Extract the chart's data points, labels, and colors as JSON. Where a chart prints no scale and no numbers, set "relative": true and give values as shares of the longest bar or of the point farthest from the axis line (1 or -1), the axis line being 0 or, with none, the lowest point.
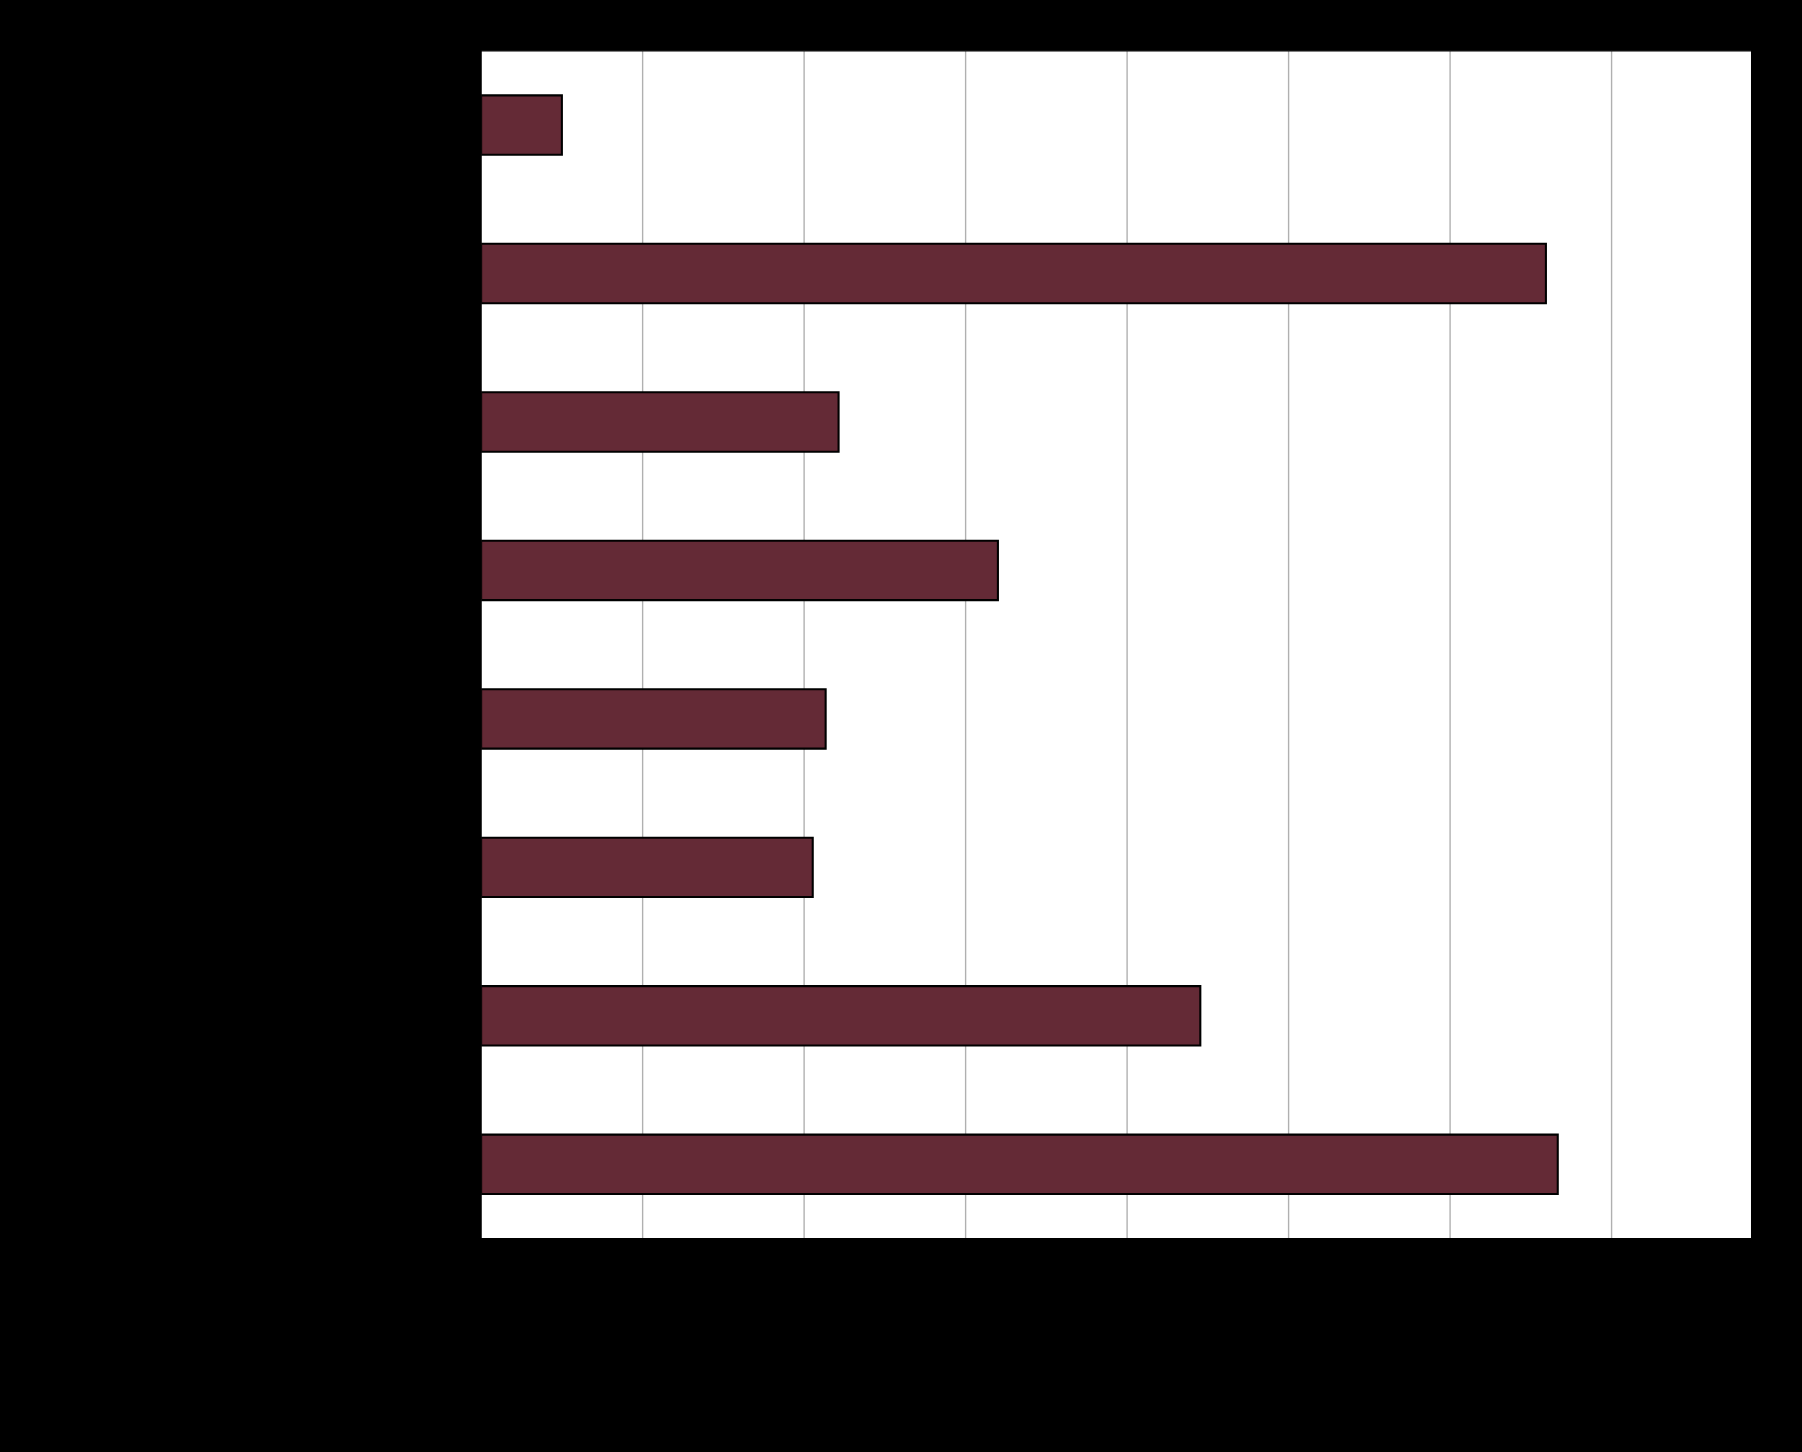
{
  "chart_data": {
    "type": "bar",
    "orientation": "horizontal",
    "relative": true,
    "categories": [
      null,
      null,
      null,
      null,
      null,
      null,
      null,
      null
    ],
    "values": [
      0.075,
      0.989,
      0.332,
      0.48,
      0.32,
      0.308,
      0.668,
      1.0
    ],
    "color": "#642a36",
    "grid": "x"
  }
}
